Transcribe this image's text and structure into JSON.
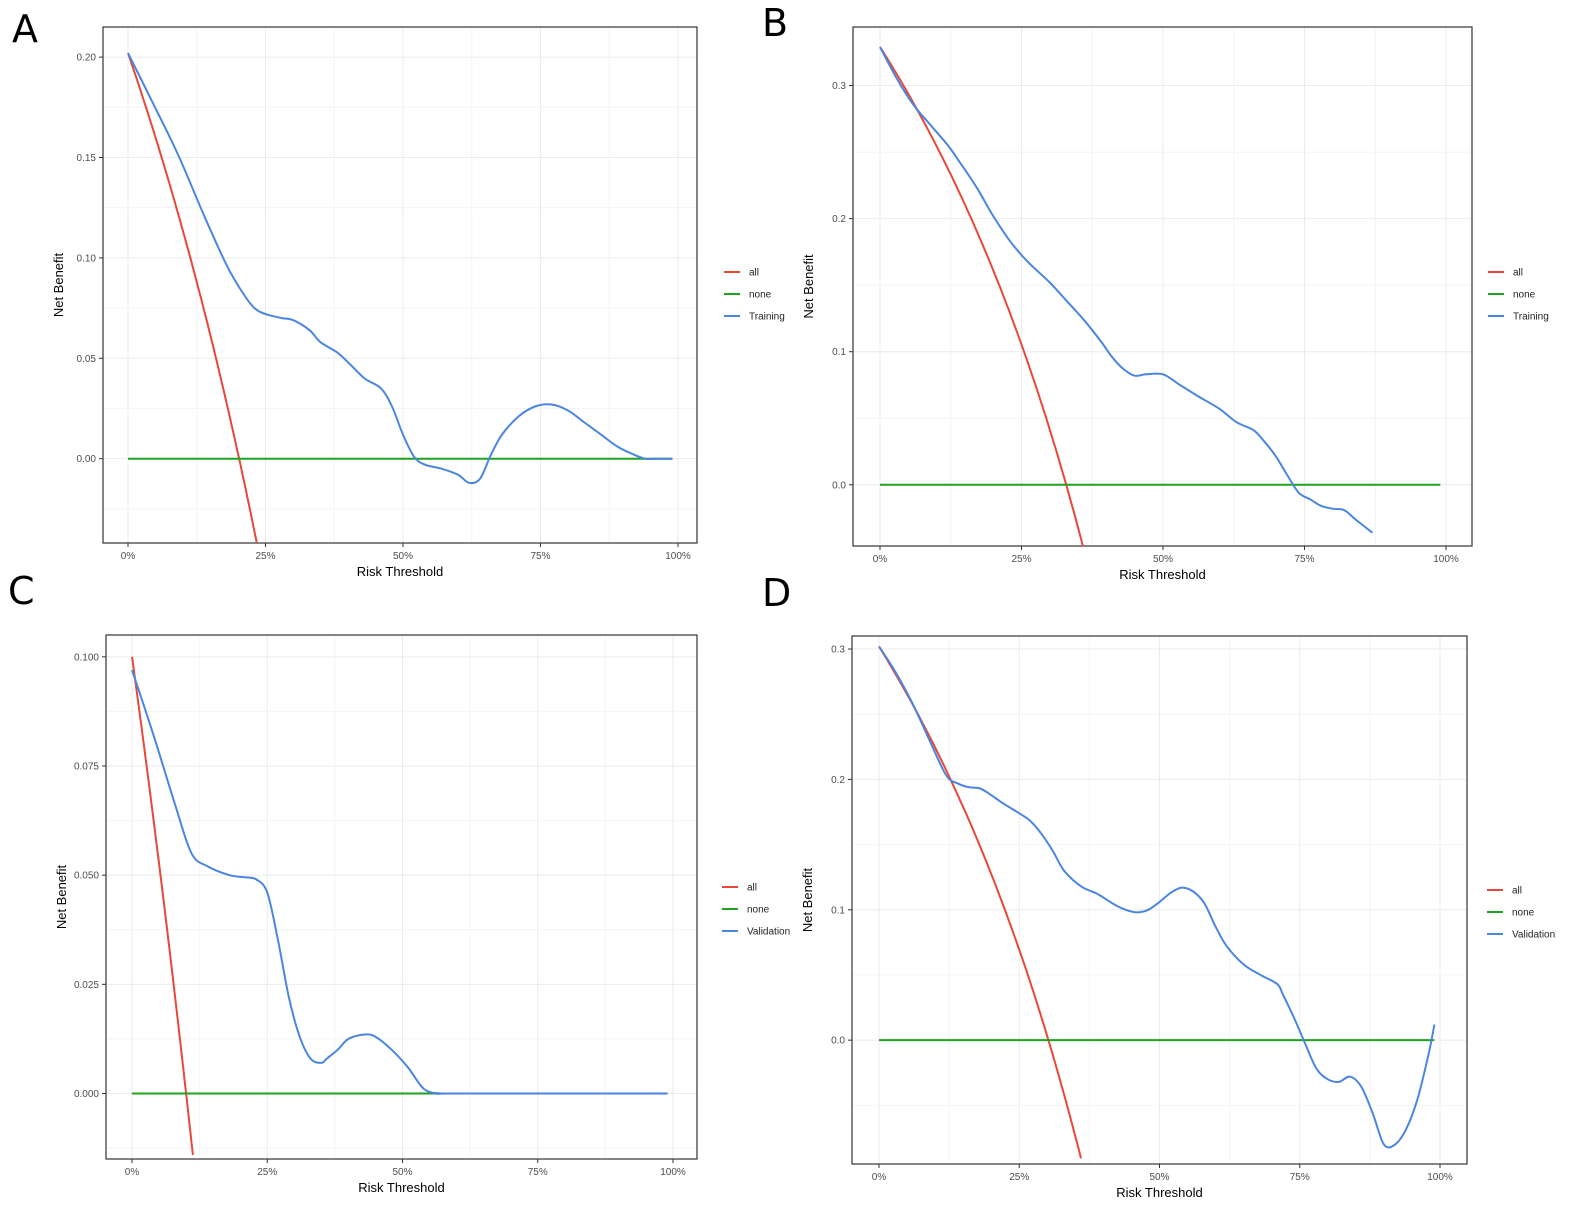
{
  "colors": {
    "all": "#e8473a",
    "none": "#1fa31f",
    "model": "#4a86e0",
    "grid": "#ebebeb",
    "frame": "#333333"
  },
  "chart_data": [
    {
      "panel": "A",
      "type": "line",
      "xlabel": "Risk Threshold",
      "ylabel": "Net Benefit",
      "xlim": [
        0,
        100
      ],
      "ylim": [
        -0.042,
        0.215
      ],
      "xticks": [
        0,
        25,
        50,
        75,
        100
      ],
      "xtick_labels": [
        "0%",
        "25%",
        "50%",
        "75%",
        "100%"
      ],
      "yticks": [
        0,
        0.05,
        0.1,
        0.15,
        0.2
      ],
      "ytick_labels": [
        "0.00",
        "0.05",
        "0.10",
        "0.15",
        "0.20"
      ],
      "legend": [
        "all",
        "none",
        "Training"
      ],
      "series": [
        {
          "name": "all",
          "prevalence": 0.202,
          "x_max": 23.7
        },
        {
          "name": "none",
          "x": [
            0,
            99
          ],
          "y": [
            0,
            0
          ]
        },
        {
          "name": "Training",
          "x": [
            0,
            4,
            9,
            14,
            18,
            21,
            23,
            25,
            28,
            30,
            33,
            35,
            38,
            40,
            43,
            46,
            48,
            50,
            52,
            54,
            57,
            60,
            62,
            64,
            66,
            68,
            71,
            74,
            77,
            80,
            83,
            86,
            89,
            92,
            94,
            96,
            99
          ],
          "y": [
            0.202,
            0.18,
            0.152,
            0.12,
            0.096,
            0.082,
            0.075,
            0.072,
            0.07,
            0.069,
            0.064,
            0.058,
            0.053,
            0.048,
            0.04,
            0.035,
            0.026,
            0.012,
            0.001,
            -0.003,
            -0.005,
            -0.008,
            -0.012,
            -0.01,
            0.002,
            0.012,
            0.021,
            0.026,
            0.027,
            0.024,
            0.018,
            0.012,
            0.006,
            0.002,
            0,
            0,
            0
          ]
        }
      ]
    },
    {
      "panel": "B",
      "type": "line",
      "xlabel": "Risk Threshold",
      "ylabel": "Net Benefit",
      "xlim": [
        0,
        100
      ],
      "ylim": [
        -0.046,
        0.344
      ],
      "xticks": [
        0,
        25,
        50,
        75,
        100
      ],
      "xtick_labels": [
        "0%",
        "25%",
        "50%",
        "75%",
        "100%"
      ],
      "yticks": [
        0,
        0.1,
        0.2,
        0.3
      ],
      "ytick_labels": [
        "0.0",
        "0.1",
        "0.2",
        "0.3"
      ],
      "legend": [
        "all",
        "none",
        "Training"
      ],
      "series": [
        {
          "name": "all",
          "prevalence": 0.329,
          "x_max": 36
        },
        {
          "name": "none",
          "x": [
            0,
            99
          ],
          "y": [
            0,
            0
          ]
        },
        {
          "name": "Training",
          "x": [
            0,
            3,
            6,
            9,
            12,
            14,
            17,
            20,
            23,
            26,
            30,
            33,
            36,
            39,
            41,
            43,
            45,
            47,
            50,
            53,
            56,
            60,
            63,
            66,
            68,
            70,
            72,
            74,
            76,
            78,
            80,
            82,
            84,
            87
          ],
          "y": [
            0.329,
            0.305,
            0.285,
            0.27,
            0.255,
            0.243,
            0.224,
            0.202,
            0.183,
            0.168,
            0.152,
            0.138,
            0.124,
            0.108,
            0.096,
            0.087,
            0.082,
            0.083,
            0.083,
            0.075,
            0.067,
            0.057,
            0.047,
            0.041,
            0.032,
            0.021,
            0.007,
            -0.006,
            -0.011,
            -0.016,
            -0.018,
            -0.019,
            -0.026,
            -0.036
          ]
        }
      ]
    },
    {
      "panel": "C",
      "type": "line",
      "xlabel": "Risk Threshold",
      "ylabel": "Net Benefit",
      "xlim": [
        0,
        100
      ],
      "ylim": [
        -0.015,
        0.105
      ],
      "xticks": [
        0,
        25,
        50,
        75,
        100
      ],
      "xtick_labels": [
        "0%",
        "25%",
        "50%",
        "75%",
        "100%"
      ],
      "yticks": [
        0,
        0.025,
        0.05,
        0.075,
        0.1
      ],
      "ytick_labels": [
        "0.000",
        "0.025",
        "0.050",
        "0.075",
        "0.100"
      ],
      "legend": [
        "all",
        "none",
        "Validation"
      ],
      "series": [
        {
          "name": "all",
          "prevalence": 0.1,
          "x_max": 11.3
        },
        {
          "name": "none",
          "x": [
            0,
            99
          ],
          "y": [
            0,
            0
          ]
        },
        {
          "name": "Validation",
          "x": [
            0,
            4,
            8,
            11,
            14,
            18,
            21,
            23,
            25,
            27,
            29,
            31,
            33,
            35,
            36,
            38,
            40,
            43,
            45,
            48,
            51,
            54,
            57,
            60,
            99
          ],
          "y": [
            0.097,
            0.082,
            0.066,
            0.055,
            0.052,
            0.05,
            0.0495,
            0.049,
            0.046,
            0.035,
            0.022,
            0.013,
            0.008,
            0.007,
            0.008,
            0.01,
            0.0125,
            0.0135,
            0.013,
            0.01,
            0.006,
            0.001,
            0,
            0,
            0
          ]
        }
      ]
    },
    {
      "panel": "D",
      "type": "line",
      "xlabel": "Risk Threshold",
      "ylabel": "Net Benefit",
      "xlim": [
        0,
        100
      ],
      "ylim": [
        -0.095,
        0.31
      ],
      "xticks": [
        0,
        25,
        50,
        75,
        100
      ],
      "xtick_labels": [
        "0%",
        "25%",
        "50%",
        "75%",
        "100%"
      ],
      "yticks": [
        0,
        0.1,
        0.2,
        0.3
      ],
      "ytick_labels": [
        "0.0",
        "0.1",
        "0.2",
        "0.3"
      ],
      "legend": [
        "all",
        "none",
        "Validation"
      ],
      "series": [
        {
          "name": "all",
          "prevalence": 0.302,
          "x_max": 36.2
        },
        {
          "name": "none",
          "x": [
            0,
            99
          ],
          "y": [
            0,
            0
          ]
        },
        {
          "name": "Validation",
          "x": [
            0,
            3,
            6,
            9,
            12,
            14,
            16,
            18,
            20,
            22,
            25,
            27,
            29,
            31,
            33,
            36,
            39,
            42,
            44,
            46,
            48,
            50,
            52,
            54,
            56,
            58,
            60,
            62,
            65,
            68,
            71,
            72,
            74,
            76,
            78,
            80,
            82,
            84,
            86,
            88,
            90,
            92,
            94,
            96,
            98,
            99
          ],
          "y": [
            0.302,
            0.282,
            0.258,
            0.23,
            0.203,
            0.197,
            0.194,
            0.193,
            0.188,
            0.182,
            0.174,
            0.168,
            0.158,
            0.145,
            0.13,
            0.118,
            0.112,
            0.104,
            0.1,
            0.098,
            0.1,
            0.106,
            0.113,
            0.117,
            0.114,
            0.105,
            0.087,
            0.072,
            0.058,
            0.05,
            0.043,
            0.035,
            0.017,
            -0.003,
            -0.022,
            -0.03,
            -0.032,
            -0.028,
            -0.036,
            -0.056,
            -0.08,
            -0.08,
            -0.068,
            -0.045,
            -0.01,
            0.012
          ]
        }
      ]
    }
  ]
}
